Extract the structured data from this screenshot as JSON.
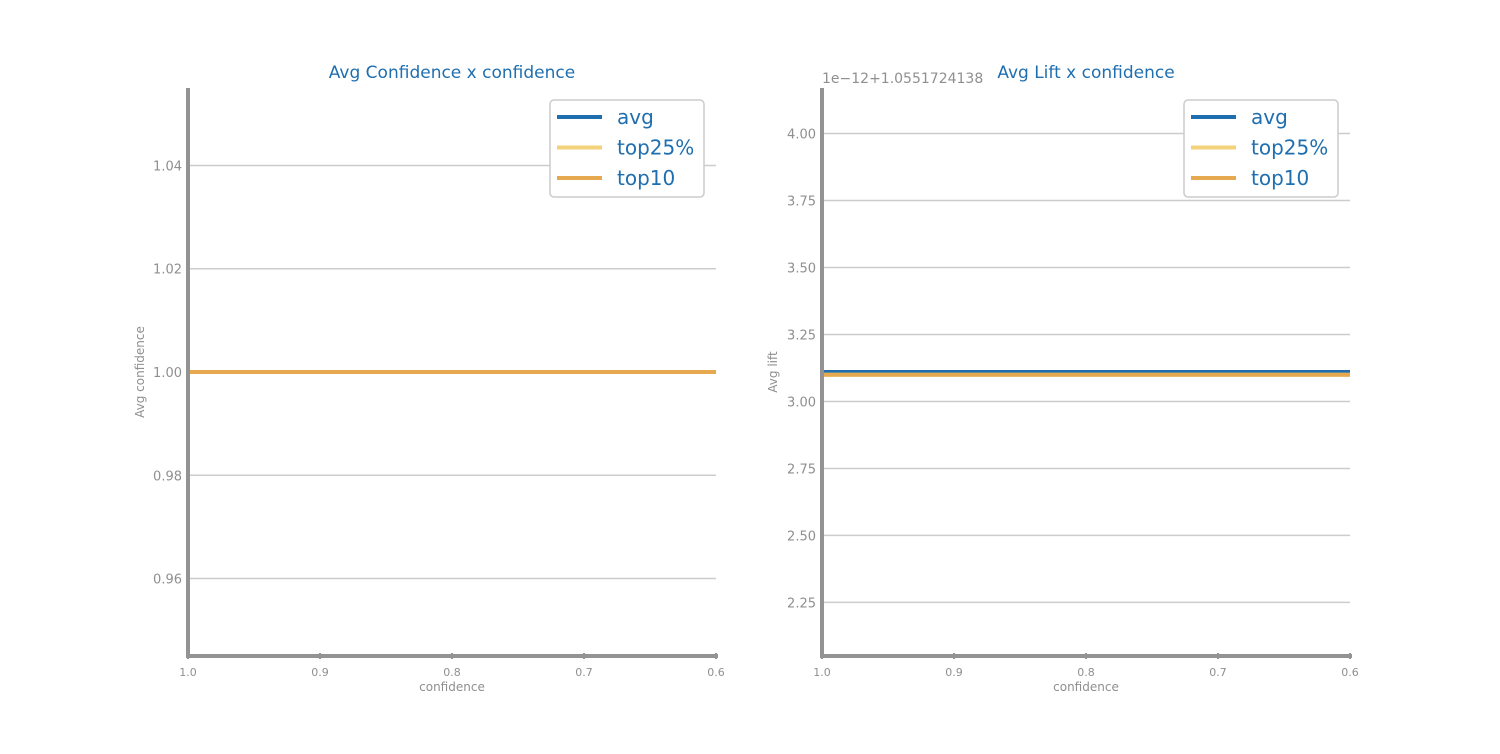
{
  "chart_data": [
    {
      "type": "line",
      "title": "Avg Confidence x confidence",
      "xlabel": "confidence",
      "ylabel": "Avg confidence",
      "x": [
        1.0,
        0.9,
        0.8,
        0.7,
        0.6
      ],
      "xlim": [
        1.0,
        0.6
      ],
      "xticks": [
        "1.0",
        "0.9",
        "0.8",
        "0.7",
        "0.6"
      ],
      "ylim": [
        0.945,
        1.055
      ],
      "yticks": [
        0.96,
        0.98,
        1.0,
        1.02,
        1.04
      ],
      "yticklabels": [
        "0.96",
        "0.98",
        "1.00",
        "1.02",
        "1.04"
      ],
      "offset_text": "",
      "grid": true,
      "legend": "top-right",
      "series": [
        {
          "name": "avg",
          "color": "#1f6fb0",
          "values": [
            1.0,
            1.0,
            1.0,
            1.0,
            1.0
          ]
        },
        {
          "name": "top25%",
          "color": "#f2d27a",
          "values": [
            1.0,
            1.0,
            1.0,
            1.0,
            1.0
          ]
        },
        {
          "name": "top10",
          "color": "#e6a94f",
          "values": [
            1.0,
            1.0,
            1.0,
            1.0,
            1.0
          ]
        }
      ]
    },
    {
      "type": "line",
      "title": "Avg Lift x confidence",
      "xlabel": "confidence",
      "ylabel": "Avg lift",
      "x": [
        1.0,
        0.9,
        0.8,
        0.7,
        0.6
      ],
      "xlim": [
        1.0,
        0.6
      ],
      "xticks": [
        "1.0",
        "0.9",
        "0.8",
        "0.7",
        "0.6"
      ],
      "ylim": [
        2.05,
        4.17
      ],
      "yticks": [
        2.25,
        2.5,
        2.75,
        3.0,
        3.25,
        3.5,
        3.75,
        4.0
      ],
      "yticklabels": [
        "2.25",
        "2.50",
        "2.75",
        "3.00",
        "3.25",
        "3.50",
        "3.75",
        "4.00"
      ],
      "offset_text": "1e−12+1.0551724138",
      "grid": true,
      "legend": "top-right",
      "series": [
        {
          "name": "avg",
          "color": "#1f6fb0",
          "values": [
            3.11,
            3.11,
            3.11,
            3.11,
            3.11
          ]
        },
        {
          "name": "top25%",
          "color": "#f2d27a",
          "values": [
            3.1,
            3.1,
            3.1,
            3.1,
            3.1
          ]
        },
        {
          "name": "top10",
          "color": "#e6a94f",
          "values": [
            3.1,
            3.1,
            3.1,
            3.1,
            3.1
          ]
        }
      ]
    }
  ]
}
